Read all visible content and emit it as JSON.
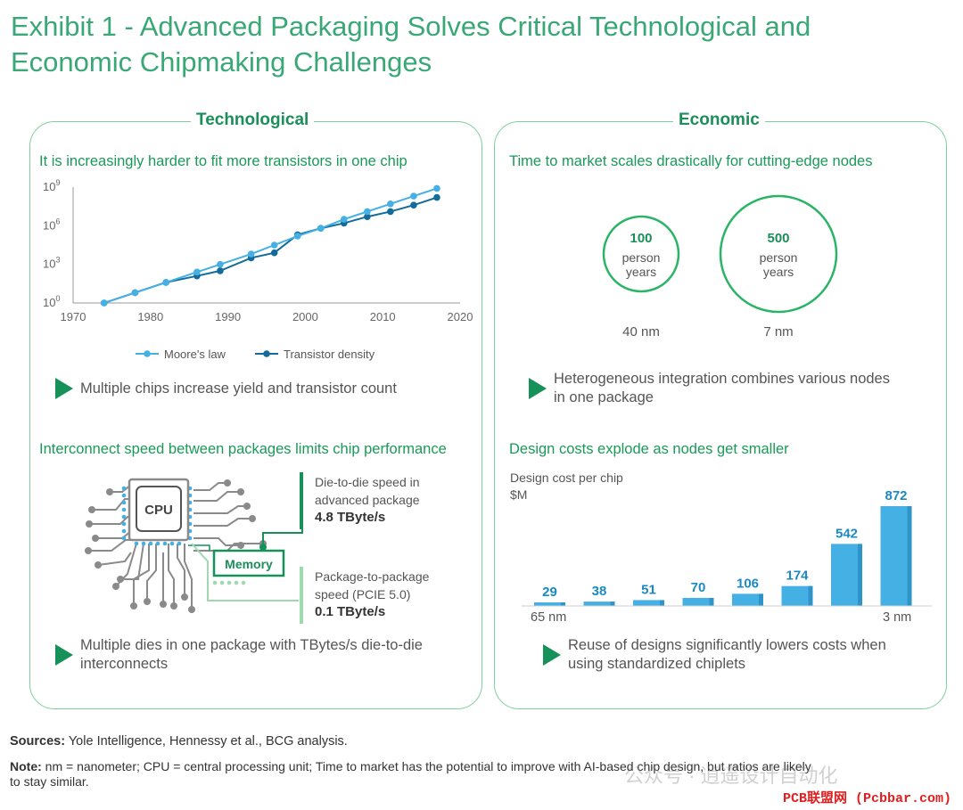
{
  "title": {
    "line1": "Exhibit 1 - Advanced Packaging Solves Critical Technological and",
    "line2": "Economic Chipmaking Challenges"
  },
  "technological": {
    "heading": "Technological",
    "transistor_subtitle": "It is increasingly harder to fit more transistors in one chip",
    "takeaway1": "Multiple chips increase yield and transistor count",
    "interconnect_subtitle": "Interconnect speed between packages limits chip performance",
    "cpu_label": "CPU",
    "memory_label": "Memory",
    "die_to_die_line1": "Die-to-die speed in",
    "die_to_die_line2": "advanced package",
    "die_to_die_value": "4.8 TByte/s",
    "pkg_line1": "Package-to-package",
    "pkg_line2": "speed (PCIE 5.0)",
    "pkg_value": "0.1 TByte/s",
    "takeaway2_line1": "Multiple dies in one package with TBytes/s die-to-die",
    "takeaway2_line2": "interconnects"
  },
  "economic": {
    "heading": "Economic",
    "ttm_subtitle": "Time to market scales drastically for cutting-edge nodes",
    "circle1_value": "100",
    "circle1_line1": "person",
    "circle1_line2": "years",
    "circle1_node": "40 nm",
    "circle2_value": "500",
    "circle2_line1": "person",
    "circle2_line2": "years",
    "circle2_node": "7 nm",
    "takeaway1_line1": "Heterogeneous integration combines various nodes",
    "takeaway1_line2": "in one package",
    "design_subtitle": "Design costs explode as nodes get smaller",
    "design_ylabel_line1": "Design cost per chip",
    "design_ylabel_line2": "$M",
    "left_node": "65 nm",
    "right_node": "3 nm",
    "takeaway2_line1": "Reuse of designs significantly lowers costs when",
    "takeaway2_line2": "using standardized chiplets"
  },
  "chart_data": [
    {
      "type": "line",
      "title": "It is increasingly harder to fit more transistors in one chip",
      "y_scale": "log10",
      "xlim": [
        1970,
        2020
      ],
      "ylim_exponent": [
        0,
        9
      ],
      "x_ticks": [
        "1970",
        "1980",
        "1990",
        "2000",
        "2010",
        "2020"
      ],
      "y_ticks": [
        {
          "base": "10",
          "exp": "0"
        },
        {
          "base": "10",
          "exp": "3"
        },
        {
          "base": "10",
          "exp": "6"
        },
        {
          "base": "10",
          "exp": "9"
        }
      ],
      "series": [
        {
          "name": "Moore's law",
          "color": "#44b0e4",
          "x": [
            1974,
            1978,
            1982,
            1986,
            1989,
            1993,
            1996,
            1999,
            2002,
            2005,
            2008,
            2011,
            2014,
            2017
          ],
          "log10_y": [
            0,
            0.8,
            1.6,
            2.4,
            3.0,
            3.8,
            4.5,
            5.2,
            5.8,
            6.5,
            7.1,
            7.7,
            8.3,
            8.9
          ]
        },
        {
          "name": "Transistor density",
          "color": "#136b9a",
          "x": [
            1974,
            1978,
            1982,
            1986,
            1989,
            1993,
            1996,
            1999,
            2002,
            2005,
            2008,
            2011,
            2014,
            2017
          ],
          "log10_y": [
            0,
            0.8,
            1.6,
            2.1,
            2.5,
            3.5,
            3.9,
            5.3,
            5.8,
            6.2,
            6.7,
            7.1,
            7.6,
            8.2
          ]
        }
      ]
    },
    {
      "type": "bar",
      "title": "Design costs explode as nodes get smaller",
      "ylabel": "Design cost per chip $M",
      "categories": [
        "65 nm",
        "",
        "",
        "",
        "",
        "",
        "",
        "3 nm"
      ],
      "values": [
        29,
        38,
        51,
        70,
        106,
        174,
        542,
        872
      ],
      "labels": [
        "29",
        "38",
        "51",
        "70",
        "106",
        "174",
        "542",
        "872"
      ],
      "color": "#44b0e4",
      "ylim": [
        0,
        872
      ]
    }
  ],
  "footer": {
    "sources_label": "Sources:",
    "sources_text": "Yole Intelligence, Hennessy et al., BCG analysis.",
    "note_label": "Note:",
    "note_line1": "nm = nanometer; CPU = central processing unit; Time to market has the potential to improve with AI-based chip design, but ratios are likely",
    "note_line2": "to stay similar."
  },
  "watermark": "公众号 · 逍遥设计自动化",
  "watermark_site": "PCB联盟网 (Pcbbar.com)"
}
